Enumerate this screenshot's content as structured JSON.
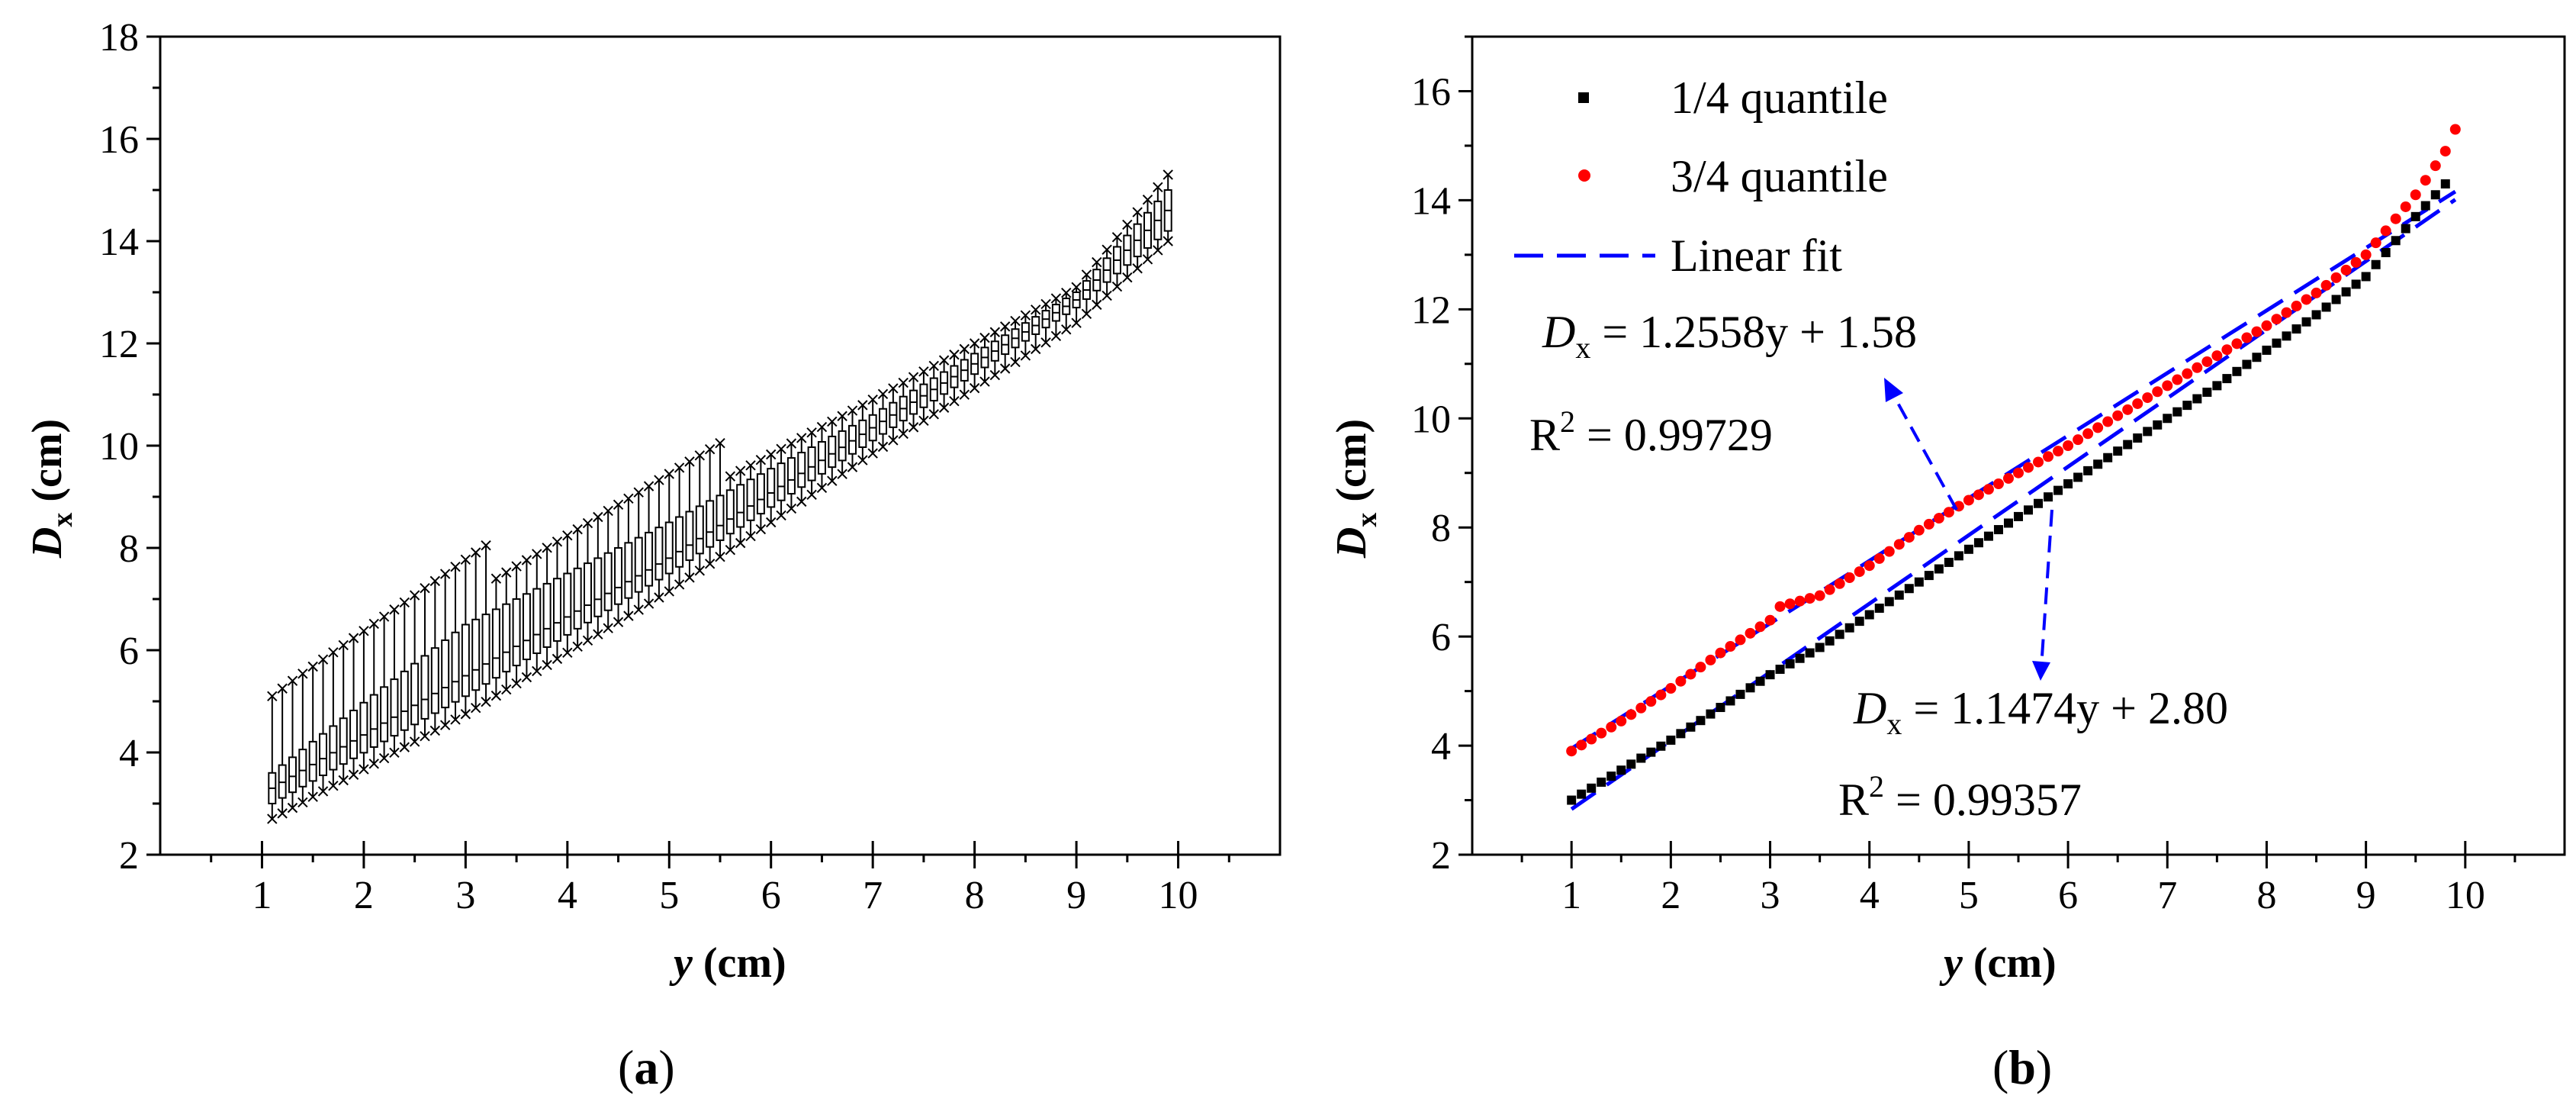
{
  "chart_data": [
    {
      "type": "box",
      "panel_label": "a",
      "xlabel_var": "y",
      "xlabel_unit": "(cm)",
      "ylabel_var": "D",
      "ylabel_sub": "x",
      "ylabel_unit": "(cm)",
      "xlim": [
        0,
        11
      ],
      "ylim": [
        2,
        18
      ],
      "xticks": [
        "1",
        "2",
        "3",
        "4",
        "5",
        "6",
        "7",
        "8",
        "9",
        "10"
      ],
      "yticks": [
        "2",
        "4",
        "6",
        "8",
        "10",
        "12",
        "14",
        "16",
        "18"
      ],
      "box_range_y": [
        1.1,
        9.9
      ],
      "box_step_y": 0.1,
      "min_line": [
        [
          1.1,
          2.7
        ],
        [
          3,
          4.75
        ],
        [
          5,
          7.15
        ],
        [
          7,
          9.85
        ],
        [
          9,
          12.4
        ],
        [
          9.9,
          14.0
        ]
      ],
      "q1_line": [
        [
          1.1,
          3.0
        ],
        [
          3,
          5.1
        ],
        [
          5,
          7.5
        ],
        [
          7,
          10.1
        ],
        [
          9,
          12.7
        ],
        [
          9.9,
          14.2
        ]
      ],
      "median_line": [
        [
          1.1,
          3.3
        ],
        [
          3,
          5.5
        ],
        [
          5,
          7.8
        ],
        [
          7,
          10.35
        ],
        [
          9,
          12.85
        ],
        [
          9.9,
          14.6
        ]
      ],
      "q3_line": [
        [
          1.1,
          3.6
        ],
        [
          3,
          6.5
        ],
        [
          5,
          8.5
        ],
        [
          7,
          10.6
        ],
        [
          9,
          13.0
        ],
        [
          9.9,
          15.0
        ]
      ],
      "max_line": [
        [
          1.1,
          5.1
        ],
        [
          1.3,
          5.4
        ],
        [
          3.2,
          8.05
        ],
        [
          3.3,
          7.4
        ],
        [
          5.5,
          10.05
        ],
        [
          5.6,
          9.4
        ],
        [
          7,
          10.9
        ],
        [
          9,
          13.1
        ],
        [
          9.9,
          15.3
        ]
      ]
    },
    {
      "type": "scatter",
      "panel_label": "b",
      "xlabel_var": "y",
      "xlabel_unit": "(cm)",
      "ylabel_var": "D",
      "ylabel_sub": "x",
      "ylabel_unit": "(cm)",
      "xlim": [
        0,
        11
      ],
      "ylim": [
        2,
        17
      ],
      "xticks": [
        "1",
        "2",
        "3",
        "4",
        "5",
        "6",
        "7",
        "8",
        "9",
        "10"
      ],
      "yticks": [
        "2",
        "4",
        "6",
        "8",
        "10",
        "12",
        "14",
        "16"
      ],
      "series": [
        {
          "name": "1/4 quantile",
          "color": "#000000",
          "marker": "square",
          "points": [
            [
              1.0,
              3.0
            ],
            [
              1.5,
              3.55
            ],
            [
              2.0,
              4.1
            ],
            [
              2.5,
              4.7
            ],
            [
              3.0,
              5.3
            ],
            [
              3.5,
              5.8
            ],
            [
              4.0,
              6.4
            ],
            [
              4.5,
              7.0
            ],
            [
              5.0,
              7.6
            ],
            [
              5.5,
              8.2
            ],
            [
              6.0,
              8.8
            ],
            [
              6.5,
              9.4
            ],
            [
              7.0,
              10.0
            ],
            [
              7.5,
              10.6
            ],
            [
              8.0,
              11.25
            ],
            [
              8.5,
              11.9
            ],
            [
              9.0,
              12.6
            ],
            [
              9.5,
              13.7
            ],
            [
              9.8,
              14.3
            ]
          ]
        },
        {
          "name": "3/4 quantile",
          "color": "#ff0000",
          "marker": "circle",
          "points": [
            [
              1.0,
              3.9
            ],
            [
              1.5,
              4.45
            ],
            [
              2.0,
              5.05
            ],
            [
              2.5,
              5.7
            ],
            [
              3.0,
              6.3
            ],
            [
              3.1,
              6.55
            ],
            [
              3.5,
              6.75
            ],
            [
              4.0,
              7.3
            ],
            [
              4.5,
              7.95
            ],
            [
              5.0,
              8.5
            ],
            [
              5.5,
              9.0
            ],
            [
              6.0,
              9.5
            ],
            [
              6.5,
              10.05
            ],
            [
              7.0,
              10.6
            ],
            [
              7.5,
              11.15
            ],
            [
              8.0,
              11.7
            ],
            [
              8.5,
              12.3
            ],
            [
              9.0,
              13.0
            ],
            [
              9.5,
              14.1
            ],
            [
              9.8,
              14.9
            ],
            [
              9.9,
              15.3
            ]
          ]
        }
      ],
      "fits": [
        {
          "name": "Linear fit",
          "slope": 1.2558,
          "intercept": 1.58,
          "x_range": [
            1.0,
            9.9
          ],
          "color": "#0000ff"
        },
        {
          "name": "Linear fit",
          "slope": 1.1474,
          "intercept": 2.8,
          "x_range": [
            1.0,
            9.9
          ],
          "color": "#0000ff"
        }
      ],
      "legend": {
        "q1": "1/4 quantile",
        "q3": "3/4 quantile",
        "fit": "Linear fit"
      },
      "annotations": {
        "eq1_var": "D",
        "eq1_sub": "x",
        "eq1_rest": " = 1.2558y + 1.58",
        "r1_main": "R",
        "r1_sup": "2",
        "r1_rest": " = 0.99729",
        "eq2_var": "D",
        "eq2_sub": "x",
        "eq2_rest": " = 1.1474y + 2.80",
        "r2_main": "R",
        "r2_sup": "2",
        "r2_rest": " = 0.99357"
      }
    }
  ]
}
